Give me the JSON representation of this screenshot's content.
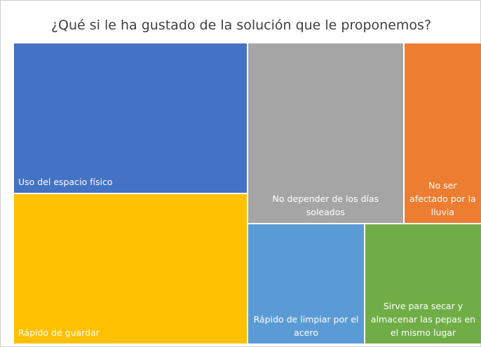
{
  "chart_data": {
    "type": "treemap",
    "title": "¿Qué si le ha gustado de la solución que le proponemos?",
    "categories": [
      "Uso del espacio físico",
      "Rápido de guardar",
      "No depender de los días soleados",
      "No ser afectado por la lluvia",
      "Rápido de limpiar por el acero",
      "Sirve para secar y almacenar las pepas en el mismo lugar"
    ],
    "values": [
      5,
      5,
      4,
      2,
      2,
      2
    ],
    "colors": [
      "#4472c4",
      "#ffc000",
      "#a5a5a5",
      "#ed7d31",
      "#5b9bd5",
      "#70ad47"
    ]
  }
}
